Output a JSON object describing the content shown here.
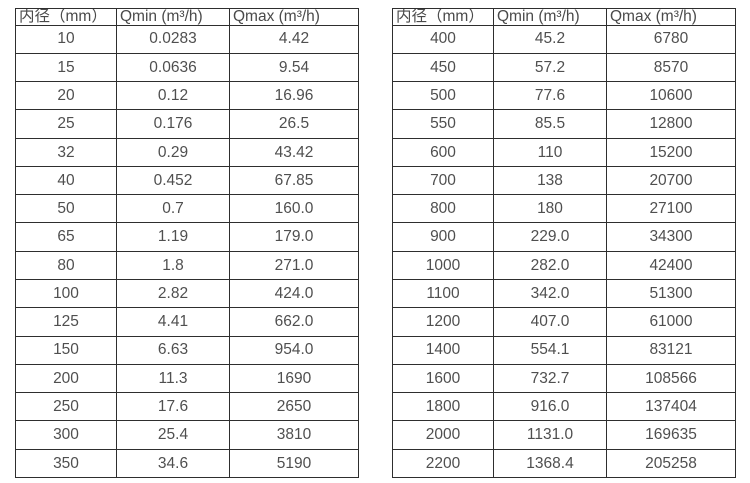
{
  "colors": {
    "background": "#ffffff",
    "text": "#4d4d4d",
    "border": "#2e2e2e"
  },
  "table_left": {
    "headers": [
      "内径（mm）",
      "Qmin (m³/h)",
      "Qmax (m³/h)"
    ],
    "rows": [
      [
        "10",
        "0.0283",
        "4.42"
      ],
      [
        "15",
        "0.0636",
        "9.54"
      ],
      [
        "20",
        "0.12",
        "16.96"
      ],
      [
        "25",
        "0.176",
        "26.5"
      ],
      [
        "32",
        "0.29",
        "43.42"
      ],
      [
        "40",
        "0.452",
        "67.85"
      ],
      [
        "50",
        "0.7",
        "160.0"
      ],
      [
        "65",
        "1.19",
        "179.0"
      ],
      [
        "80",
        "1.8",
        "271.0"
      ],
      [
        "100",
        "2.82",
        "424.0"
      ],
      [
        "125",
        "4.41",
        "662.0"
      ],
      [
        "150",
        "6.63",
        "954.0"
      ],
      [
        "200",
        "11.3",
        "1690"
      ],
      [
        "250",
        "17.6",
        "2650"
      ],
      [
        "300",
        "25.4",
        "3810"
      ],
      [
        "350",
        "34.6",
        "5190"
      ]
    ]
  },
  "table_right": {
    "headers": [
      "内径（mm）",
      "Qmin (m³/h)",
      "Qmax (m³/h)"
    ],
    "rows": [
      [
        "400",
        "45.2",
        "6780"
      ],
      [
        "450",
        "57.2",
        "8570"
      ],
      [
        "500",
        "77.6",
        "10600"
      ],
      [
        "550",
        "85.5",
        "12800"
      ],
      [
        "600",
        "110",
        "15200"
      ],
      [
        "700",
        "138",
        "20700"
      ],
      [
        "800",
        "180",
        "27100"
      ],
      [
        "900",
        "229.0",
        "34300"
      ],
      [
        "1000",
        "282.0",
        "42400"
      ],
      [
        "1100",
        "342.0",
        "51300"
      ],
      [
        "1200",
        "407.0",
        "61000"
      ],
      [
        "1400",
        "554.1",
        "83121"
      ],
      [
        "1600",
        "732.7",
        "108566"
      ],
      [
        "1800",
        "916.0",
        "137404"
      ],
      [
        "2000",
        "1131.0",
        "169635"
      ],
      [
        "2200",
        "1368.4",
        "205258"
      ]
    ]
  }
}
